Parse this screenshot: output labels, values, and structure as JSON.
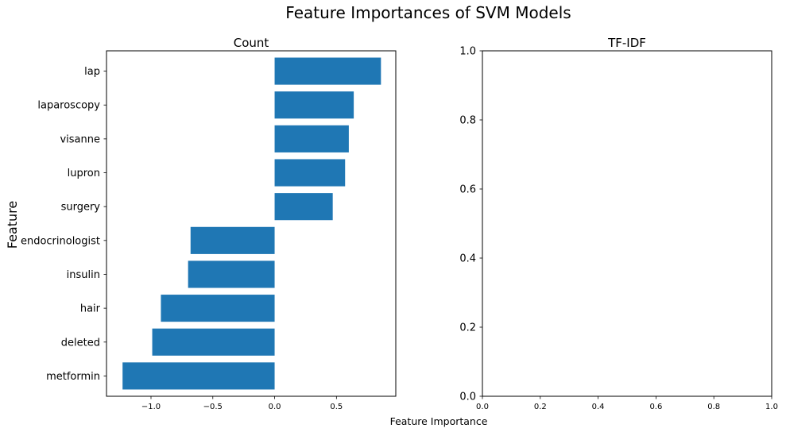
{
  "figure": {
    "title": "Feature Importances of SVM Models",
    "xlabel": "Feature Importance",
    "ylabel": "Feature"
  },
  "chart_data": [
    {
      "type": "bar",
      "orientation": "horizontal",
      "title": "Count",
      "categories": [
        "lap",
        "laparoscopy",
        "visanne",
        "lupron",
        "surgery",
        "endocrinologist",
        "insulin",
        "hair",
        "deleted",
        "metformin"
      ],
      "values": [
        0.86,
        0.64,
        0.6,
        0.57,
        0.47,
        -0.68,
        -0.7,
        -0.92,
        -0.99,
        -1.23
      ],
      "xlim": [
        -1.36,
        0.98
      ],
      "xticks": [
        -1.0,
        -0.5,
        0.0,
        0.5
      ],
      "xtick_labels": [
        "−1.0",
        "−0.5",
        "0.0",
        "0.5"
      ],
      "bar_color": "#1f77b4",
      "grid": false
    },
    {
      "type": "bar",
      "title": "TF-IDF",
      "categories": [],
      "values": [],
      "xlim": [
        0,
        1
      ],
      "ylim": [
        0,
        1
      ],
      "xticks": [
        0.0,
        0.2,
        0.4,
        0.6,
        0.8,
        1.0
      ],
      "xtick_labels": [
        "0.0",
        "0.2",
        "0.4",
        "0.6",
        "0.8",
        "1.0"
      ],
      "yticks": [
        0.0,
        0.2,
        0.4,
        0.6,
        0.8,
        1.0
      ],
      "ytick_labels": [
        "0.0",
        "0.2",
        "0.4",
        "0.6",
        "0.8",
        "1.0"
      ],
      "grid": false
    }
  ]
}
